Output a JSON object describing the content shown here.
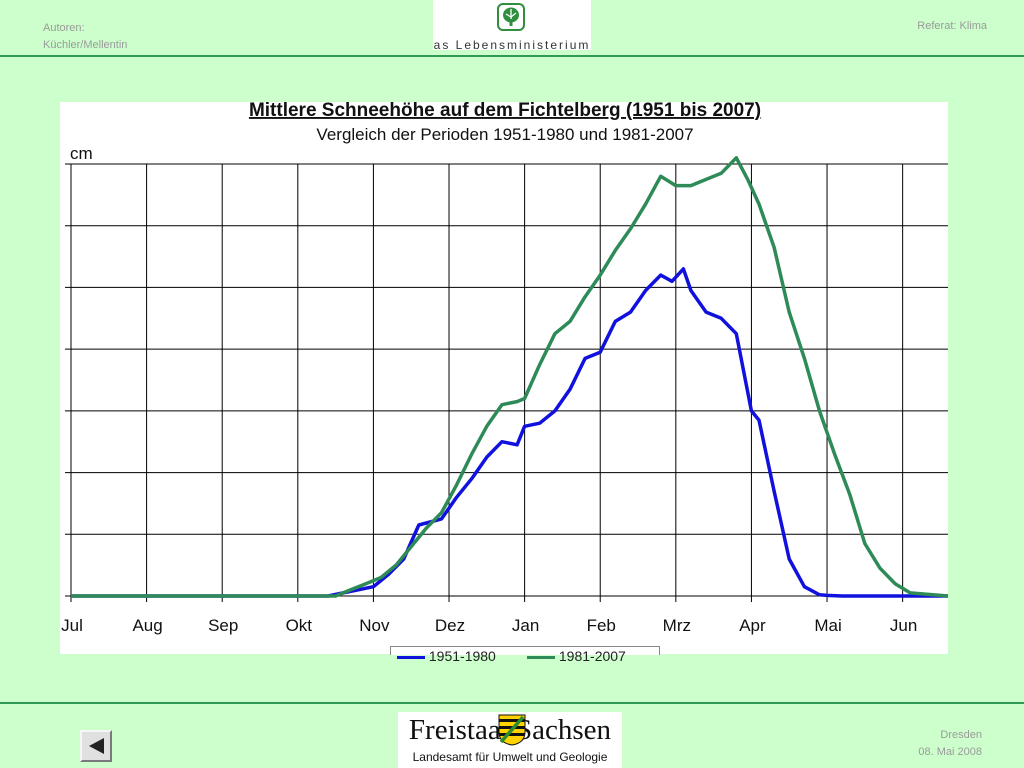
{
  "header": {
    "authors_label": "Autoren:",
    "authors": "Küchler/Mellentin",
    "topic": "Referat: Klima",
    "logo_text": "as Lebensministerium"
  },
  "chart_data": {
    "type": "line",
    "title": "Mittlere Schneehöhe auf dem Fichtelberg (1951 bis 2007)",
    "subtitle": "Vergleich der Perioden 1951-1980 und 1981-2007",
    "ylabel": "cm",
    "xlabel": "",
    "categories": [
      "Jul",
      "Aug",
      "Sep",
      "Okt",
      "Nov",
      "Dez",
      "Jan",
      "Feb",
      "Mrz",
      "Apr",
      "Mai",
      "Jun"
    ],
    "x_domain": [
      0,
      11.6
    ],
    "ylim": [
      0,
      7
    ],
    "y_tick_count": 8,
    "y_tick_labels_shown": false,
    "grid": true,
    "colors": {
      "series1": "#1111dd",
      "series2": "#2e8b57",
      "grid": "#000000"
    },
    "series": [
      {
        "name": "1951-1980",
        "color": "#1111dd",
        "x": [
          0,
          3.4,
          3.6,
          3.8,
          4.0,
          4.2,
          4.4,
          4.6,
          4.9,
          5.1,
          5.3,
          5.5,
          5.7,
          5.9,
          6.0,
          6.2,
          6.4,
          6.6,
          6.8,
          7.0,
          7.2,
          7.4,
          7.6,
          7.8,
          7.95,
          8.1,
          8.2,
          8.4,
          8.6,
          8.8,
          9.0,
          9.1,
          9.3,
          9.5,
          9.7,
          9.9,
          10.0,
          10.2,
          10.4,
          10.6,
          11.6
        ],
        "y": [
          0,
          0,
          0.05,
          0.1,
          0.15,
          0.35,
          0.6,
          1.15,
          1.25,
          1.6,
          1.9,
          2.25,
          2.5,
          2.45,
          2.75,
          2.8,
          3.0,
          3.35,
          3.85,
          3.95,
          4.45,
          4.6,
          4.95,
          5.2,
          5.1,
          5.3,
          4.95,
          4.6,
          4.5,
          4.25,
          3.0,
          2.85,
          1.7,
          0.6,
          0.15,
          0.02,
          0.01,
          0,
          0,
          0,
          0
        ]
      },
      {
        "name": "1981-2007",
        "color": "#2e8b57",
        "x": [
          0,
          3.5,
          3.7,
          3.9,
          4.1,
          4.3,
          4.5,
          4.7,
          4.9,
          5.1,
          5.3,
          5.5,
          5.7,
          5.9,
          6.0,
          6.2,
          6.4,
          6.6,
          6.8,
          7.0,
          7.2,
          7.4,
          7.6,
          7.8,
          8.0,
          8.2,
          8.4,
          8.6,
          8.8,
          8.95,
          9.1,
          9.3,
          9.5,
          9.7,
          9.9,
          10.1,
          10.3,
          10.5,
          10.7,
          10.9,
          11.1,
          11.6
        ],
        "y": [
          0,
          0,
          0.1,
          0.2,
          0.3,
          0.5,
          0.8,
          1.1,
          1.35,
          1.8,
          2.3,
          2.75,
          3.1,
          3.15,
          3.2,
          3.75,
          4.25,
          4.45,
          4.85,
          5.2,
          5.6,
          5.95,
          6.35,
          6.8,
          6.65,
          6.65,
          6.75,
          6.85,
          7.1,
          6.75,
          6.35,
          5.65,
          4.6,
          3.85,
          3.0,
          2.3,
          1.65,
          0.85,
          0.45,
          0.2,
          0.05,
          0
        ]
      }
    ]
  },
  "legend": {
    "items": [
      "1951-1980",
      "1981-2007"
    ]
  },
  "footer": {
    "state_name": "Freistaat Sachsen",
    "agency": "Landesamt für Umwelt und Geologie",
    "place": "Dresden",
    "date": "08. Mai 2008"
  }
}
